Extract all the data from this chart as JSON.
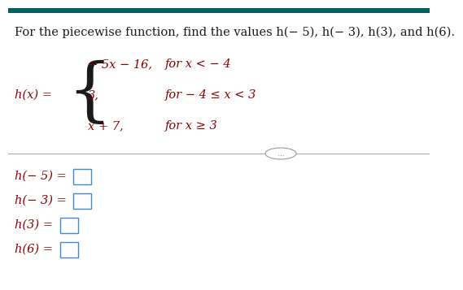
{
  "title": "For the piecewise function, find the values h(−  5), h(− 3), h(3), and h(6).",
  "title_fontsize": 10.5,
  "title_color": "#1a1a1a",
  "background_color": "#ffffff",
  "top_bar_color": "#006060",
  "piece1_expr": "− 5x − 16,",
  "piece1_cond": "for x < − 4",
  "piece2_expr": "3,",
  "piece2_cond": "for − 4 ≤ x < 3",
  "piece3_expr": "x + 7,",
  "piece3_cond": "for x ≥ 3",
  "hx_label": "h(x) =",
  "answer_labels": [
    "h(− 5) =",
    "h(− 3) =",
    "h(3) =",
    "h(6) ="
  ],
  "dots_text": "...",
  "text_color": "#1a1a1a",
  "math_color": "#8b0000",
  "box_edge_color": "#4488cc",
  "font_size_body": 10.5,
  "font_size_math": 10.5
}
